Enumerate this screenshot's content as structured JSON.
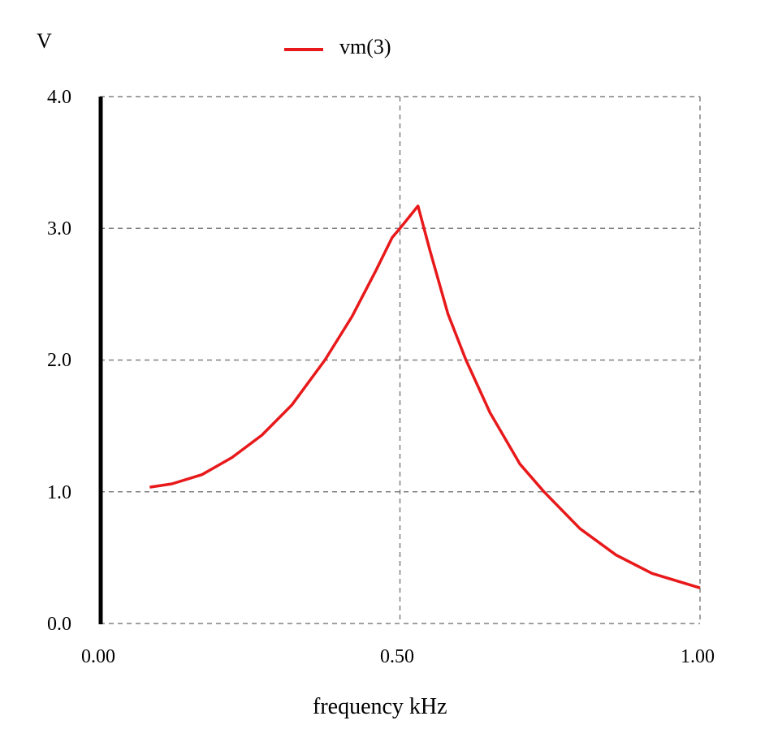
{
  "chart_data": {
    "type": "line",
    "title": "",
    "ylabel": "V",
    "xlabel": "frequency kHz",
    "xlim": [
      0.0,
      1.0
    ],
    "ylim": [
      0.0,
      4.0
    ],
    "xticks": [
      "0.00",
      "0.50",
      "1.00"
    ],
    "xtick_values": [
      0.0,
      0.5,
      1.0
    ],
    "yticks": [
      "0.0",
      "1.0",
      "2.0",
      "3.0",
      "4.0"
    ],
    "ytick_values": [
      0.0,
      1.0,
      2.0,
      3.0,
      4.0
    ],
    "grid": true,
    "legend_position": "top-center",
    "series": [
      {
        "name": "vm(3)",
        "color": "#e8191b",
        "x": [
          0.083,
          0.12,
          0.17,
          0.22,
          0.27,
          0.32,
          0.375,
          0.42,
          0.46,
          0.487,
          0.5,
          0.53,
          0.55,
          0.58,
          0.61,
          0.65,
          0.7,
          0.74,
          0.8,
          0.86,
          0.92,
          1.0
        ],
        "values": [
          1.035,
          1.06,
          1.13,
          1.26,
          1.43,
          1.66,
          2.0,
          2.33,
          2.68,
          2.93,
          3.0,
          3.17,
          2.83,
          2.35,
          2.0,
          1.6,
          1.21,
          1.0,
          0.72,
          0.52,
          0.38,
          0.27
        ]
      }
    ]
  }
}
